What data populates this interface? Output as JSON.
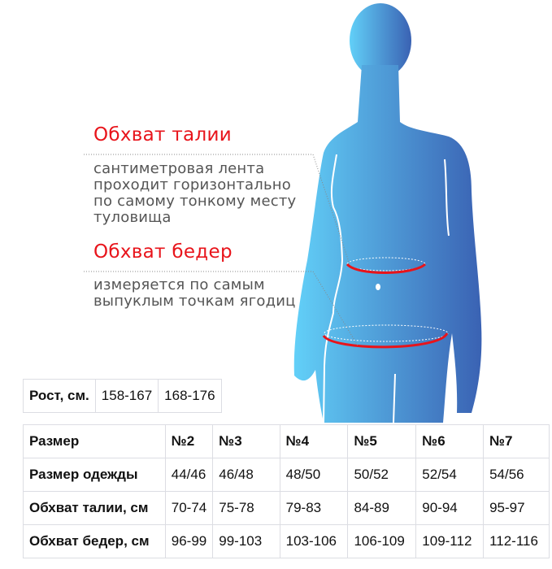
{
  "colors": {
    "accent": "#e8141b",
    "figure_light": "#5ecdf7",
    "figure_dark": "#3a62b3"
  },
  "waist": {
    "title": "Обхват талии",
    "desc": [
      "сантиметровая лента",
      "проходит горизонтально",
      "по самому тонкому месту",
      "туловища"
    ]
  },
  "hips": {
    "title": "Обхват бедер",
    "desc": [
      "измеряется по самым",
      "выпуклым точкам ягодиц"
    ]
  },
  "height_table": {
    "label": "Рост, см.",
    "values": [
      "158-167",
      "168-176"
    ]
  },
  "size_table": {
    "header": [
      "Размер",
      "№2",
      "№3",
      "№4",
      "№5",
      "№6",
      "№7"
    ],
    "rows": [
      [
        "Размер одежды",
        "44/46",
        "46/48",
        "48/50",
        "50/52",
        "52/54",
        "54/56"
      ],
      [
        "Обхват талии, см",
        "70-74",
        "75-78",
        "79-83",
        "84-89",
        "90-94",
        "95-97"
      ],
      [
        "Обхват бедер, см",
        "96-99",
        "99-103",
        "103-106",
        "106-109",
        "109-112",
        "112-116"
      ]
    ]
  }
}
